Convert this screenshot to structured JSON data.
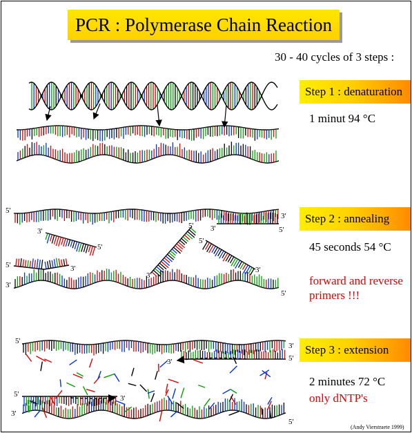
{
  "title": "PCR : Polymerase Chain Reaction",
  "subtitle": "30 - 40 cycles of 3 steps :",
  "steps": [
    {
      "label": "Step 1 : denaturation",
      "condition": "1 minut 94 °C"
    },
    {
      "label": "Step 2 : annealing",
      "condition": "45 seconds 54 °C",
      "note": [
        "forward and reverse",
        "primers !!!"
      ]
    },
    {
      "label": "Step 3 : extension",
      "condition": "2 minutes 72 °C",
      "note": [
        "only dNTP's"
      ]
    }
  ],
  "credit": "(Andy Vierstraete 1999)",
  "ends": {
    "five": "5'",
    "three": "3'"
  },
  "colors": {
    "rung": [
      "#e00000",
      "#00a000",
      "#0030e0",
      "#000000"
    ],
    "title_bg": "#ffe600",
    "step_from": "#ffee00",
    "step_to": "#ff8a00",
    "note": "#e00000"
  }
}
